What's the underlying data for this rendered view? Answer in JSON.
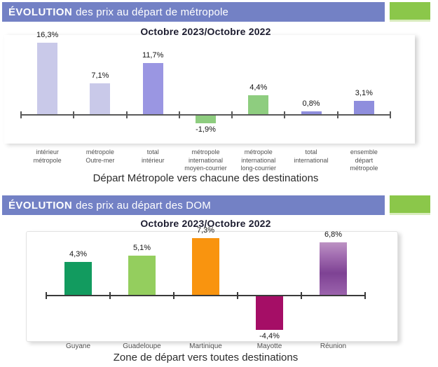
{
  "sections": [
    {
      "banner": {
        "title_bold": "ÉVOLUTION",
        "title_rest": "des prix au départ de métropole"
      }
    },
    {
      "banner": {
        "title_bold": "ÉVOLUTION",
        "title_rest": "des prix au départ des DOM"
      }
    }
  ],
  "colors": {
    "banner_purple": "#7381c5",
    "banner_green": "#8bc74a",
    "banner_green_edge": "#d9ecbe",
    "axis_chart1": "#5a5a5a",
    "axis_chart2": "#3a3a3a"
  },
  "chart_data": [
    {
      "type": "bar",
      "title": "Octobre 2023/Octobre 2022",
      "xlabel": "Départ Métropole vers chacune des destinations",
      "ylabel": "",
      "unit": "%",
      "grid": false,
      "legend": false,
      "ylim": [
        -3,
        18
      ],
      "categories": [
        [
          "intérieur",
          "métropole"
        ],
        [
          "métropole",
          "Outre-mer"
        ],
        [
          "total",
          "intérieur"
        ],
        [
          "métropole",
          "international",
          "moyen-courrier"
        ],
        [
          "métropole",
          "international",
          "long-courrier"
        ],
        [
          "total",
          "international"
        ],
        [
          "ensemble",
          "départ",
          "métropole"
        ]
      ],
      "values": [
        16.3,
        7.1,
        11.7,
        -1.9,
        4.4,
        0.8,
        3.1
      ],
      "value_labels": [
        "16,3%",
        "7,1%",
        "11,7%",
        "-1,9%",
        "4,4%",
        "0,8%",
        "3,1%"
      ],
      "bar_colors": [
        "#c9c9e9",
        "#c9c9e9",
        "#9a96e2",
        "#8ecd7f",
        "#8ecd7f",
        "#8f8edd",
        "#8f8edd"
      ],
      "axis_color": "#5a5a5a"
    },
    {
      "type": "bar",
      "title": "Octobre 2023/Octobre 2022",
      "xlabel": "Zone de départ vers toutes destinations",
      "ylabel": "",
      "unit": "%",
      "grid": false,
      "legend": false,
      "ylim": [
        -6,
        9
      ],
      "categories": [
        [
          "Guyane"
        ],
        [
          "Guadeloupe"
        ],
        [
          "Martinique"
        ],
        [
          "Mayotte"
        ],
        [
          "Réunion"
        ]
      ],
      "values": [
        4.3,
        5.1,
        7.3,
        -4.4,
        6.8
      ],
      "value_labels": [
        "4,3%",
        "5,1%",
        "7,3%",
        "-4,4%",
        "6,8%"
      ],
      "bar_colors": [
        "#129b5f",
        "#94ce5e",
        "#f9940f",
        "#a50e66",
        "linear-gradient(180deg,#bd93c4 0%,#a571b3 22%,#7e4294 58%,#9c64ad 100%)"
      ],
      "axis_color": "#3a3a3a"
    }
  ]
}
